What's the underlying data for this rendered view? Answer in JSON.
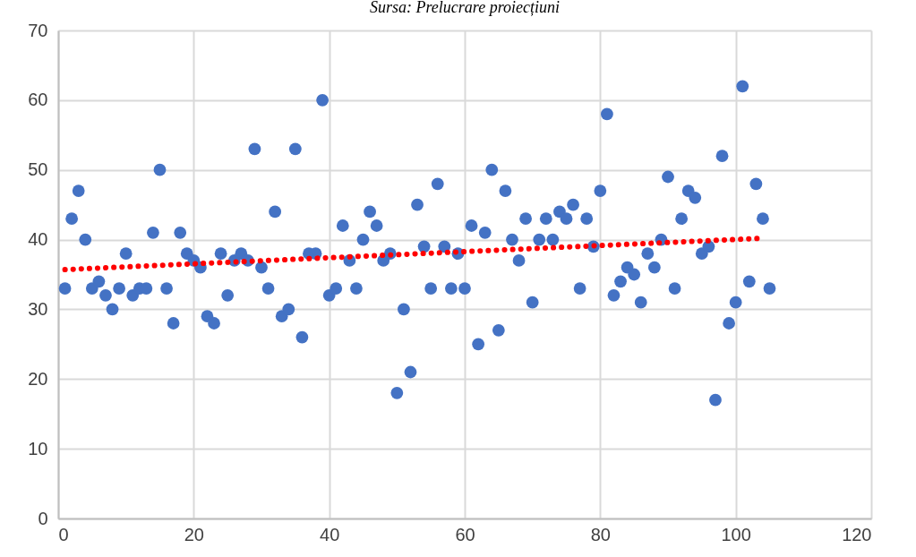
{
  "chart_data": {
    "type": "scatter",
    "annotations": [
      "Sursa: Prelucrare proiecțiuni"
    ],
    "x": [
      1,
      2,
      3,
      4,
      5,
      6,
      7,
      8,
      9,
      10,
      11,
      12,
      13,
      14,
      15,
      16,
      17,
      18,
      19,
      20,
      21,
      22,
      23,
      24,
      25,
      26,
      27,
      28,
      29,
      30,
      31,
      32,
      33,
      34,
      35,
      36,
      37,
      38,
      39,
      40,
      41,
      42,
      43,
      44,
      45,
      46,
      47,
      48,
      49,
      50,
      51,
      52,
      53,
      54,
      55,
      56,
      57,
      58,
      59,
      60,
      61,
      62,
      63,
      64,
      65,
      66,
      67,
      68,
      69,
      70,
      71,
      72,
      73,
      74,
      75,
      76,
      77,
      78,
      79,
      80,
      81,
      82,
      83,
      84,
      85,
      86,
      87,
      88,
      89,
      90,
      91,
      92,
      93,
      94,
      95,
      96,
      97,
      98,
      99,
      100,
      101,
      102,
      103,
      104,
      105
    ],
    "series": [
      {
        "color": "#4472c4",
        "marker": "circle",
        "values": [
          33,
          43,
          47,
          40,
          33,
          34,
          32,
          30,
          33,
          38,
          32,
          33,
          33,
          41,
          50,
          33,
          28,
          41,
          38,
          37,
          36,
          29,
          28,
          38,
          32,
          37,
          38,
          37,
          53,
          36,
          33,
          44,
          29,
          30,
          53,
          26,
          38,
          38,
          60,
          32,
          33,
          42,
          37,
          33,
          40,
          44,
          42,
          37,
          38,
          18,
          30,
          21,
          45,
          39,
          33,
          48,
          39,
          33,
          38,
          33,
          42,
          25,
          41,
          50,
          27,
          47,
          40,
          37,
          43,
          31,
          40,
          43,
          40,
          44,
          43,
          45,
          33,
          43,
          39,
          47,
          58,
          32,
          34,
          36,
          35,
          31,
          38,
          36,
          40,
          49,
          33,
          43,
          47,
          46,
          38,
          39,
          17,
          52,
          28,
          31,
          62,
          34,
          48,
          43,
          33
        ]
      },
      {
        "type": "line",
        "color": "#ff0000",
        "line_style": "dotted",
        "marker": "none",
        "x": [
          1,
          104
        ],
        "values": [
          35.7,
          40.2
        ]
      }
    ],
    "xlim": [
      0,
      120
    ],
    "xticks": [
      0,
      20,
      40,
      60,
      80,
      100,
      120
    ],
    "ylim": [
      0,
      70
    ],
    "yticks": [
      0,
      10,
      20,
      30,
      40,
      50,
      60,
      70
    ],
    "grid": true
  }
}
